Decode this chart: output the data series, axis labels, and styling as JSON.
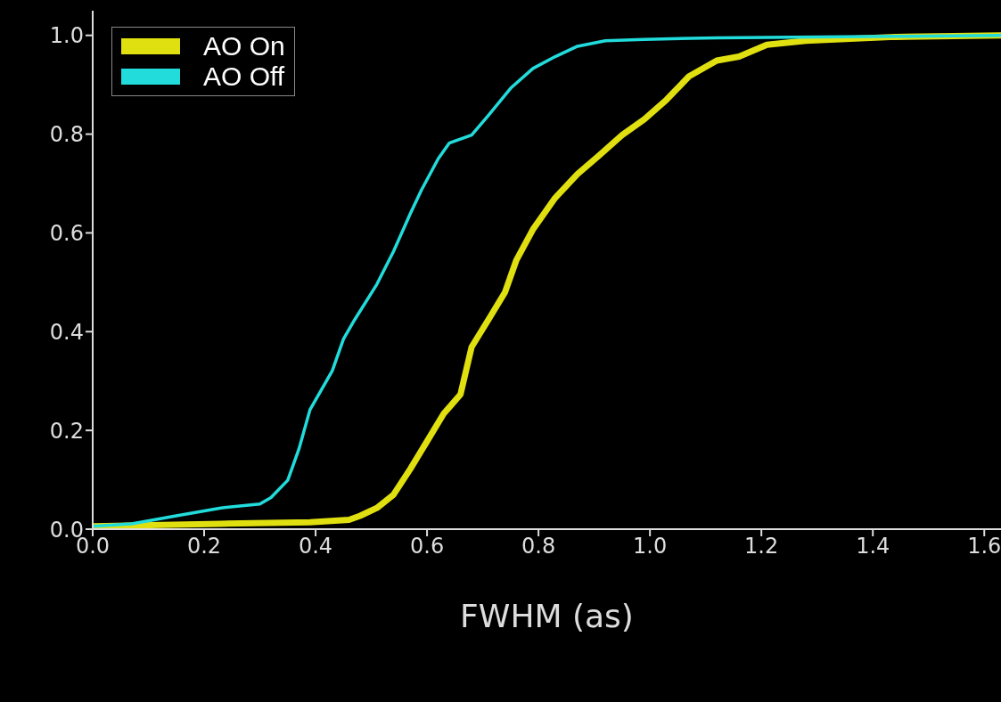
{
  "chart_data": {
    "type": "line",
    "xlabel": "FWHM (as)",
    "xlim": [
      0,
      1.63
    ],
    "ylim": [
      0,
      1.05
    ],
    "xticks": [
      {
        "value": 0,
        "label": "0.0"
      },
      {
        "value": 0.2,
        "label": "0.2"
      },
      {
        "value": 0.4,
        "label": "0.4"
      },
      {
        "value": 0.6,
        "label": "0.6"
      },
      {
        "value": 0.8,
        "label": "0.8"
      },
      {
        "value": 1,
        "label": "1.0"
      },
      {
        "value": 1.2,
        "label": "1.2"
      },
      {
        "value": 1.4,
        "label": "1.4"
      },
      {
        "value": 1.6,
        "label": "1.6"
      }
    ],
    "yticks": [
      {
        "value": 0,
        "label": "0.0"
      },
      {
        "value": 0.2,
        "label": "0.2"
      },
      {
        "value": 0.4,
        "label": "0.4"
      },
      {
        "value": 0.6,
        "label": "0.6"
      },
      {
        "value": 0.8,
        "label": "0.8"
      },
      {
        "value": 1,
        "label": "1.0"
      }
    ],
    "legend": "top left",
    "grid": false,
    "series": [
      {
        "name": "AO On",
        "color": "#e0e010",
        "x": [
          0,
          0.23,
          0.39,
          0.46,
          0.48,
          0.51,
          0.54,
          0.57,
          0.6,
          0.63,
          0.66,
          0.68,
          0.71,
          0.74,
          0.76,
          0.79,
          0.83,
          0.87,
          0.91,
          0.95,
          0.99,
          1.03,
          1.07,
          1.12,
          1.16,
          1.21,
          1.28,
          1.44,
          1.63
        ],
        "values": [
          0.006,
          0.011,
          0.014,
          0.019,
          0.027,
          0.043,
          0.07,
          0.122,
          0.178,
          0.234,
          0.273,
          0.369,
          0.424,
          0.48,
          0.544,
          0.607,
          0.671,
          0.719,
          0.758,
          0.798,
          0.83,
          0.87,
          0.917,
          0.949,
          0.957,
          0.981,
          0.989,
          0.997,
          1.0
        ]
      },
      {
        "name": "AO Off",
        "color": "#22dcdc",
        "x": [
          0,
          0.07,
          0.15,
          0.23,
          0.3,
          0.32,
          0.35,
          0.37,
          0.39,
          0.43,
          0.45,
          0.47,
          0.51,
          0.54,
          0.57,
          0.59,
          0.62,
          0.64,
          0.68,
          0.71,
          0.75,
          0.79,
          0.83,
          0.87,
          0.92,
          0.99,
          1.12,
          1.44,
          1.63
        ],
        "values": [
          0.006,
          0.011,
          0.027,
          0.043,
          0.051,
          0.064,
          0.099,
          0.162,
          0.242,
          0.321,
          0.385,
          0.424,
          0.496,
          0.563,
          0.639,
          0.687,
          0.75,
          0.782,
          0.798,
          0.838,
          0.893,
          0.933,
          0.957,
          0.978,
          0.989,
          0.992,
          0.995,
          0.998,
          1.0
        ]
      }
    ]
  }
}
